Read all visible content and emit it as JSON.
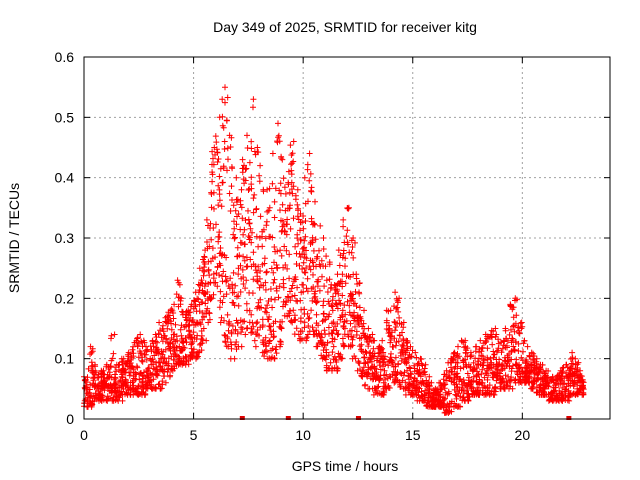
{
  "chart_data": {
    "type": "scatter",
    "title": "Day 349 of 2025, SRMTID for receiver kitg",
    "xlabel": "GPS time / hours",
    "ylabel": "SRMTID / TECUs",
    "xlim": [
      0,
      24
    ],
    "ylim": [
      0,
      0.6
    ],
    "xticks": [
      0,
      5,
      10,
      15,
      20
    ],
    "yticks": [
      0,
      0.1,
      0.2,
      0.3,
      0.4,
      0.5,
      0.6
    ],
    "xtick_labels": [
      "0",
      "5",
      "10",
      "15",
      "20"
    ],
    "ytick_labels": [
      "0",
      "0.1",
      "0.2",
      "0.3",
      "0.4",
      "0.5",
      "0.6"
    ],
    "grid": true,
    "marker": "+",
    "color": "#ff0000",
    "data_gap_markers_x": [
      7.2,
      9.3,
      12.5,
      22.1
    ],
    "series": [
      {
        "name": "SRMTID",
        "x": [
          0.0,
          0.2,
          0.4,
          0.6,
          0.8,
          1.0,
          1.2,
          1.4,
          1.6,
          1.8,
          2.0,
          2.2,
          2.4,
          2.6,
          2.8,
          3.0,
          3.2,
          3.4,
          3.6,
          3.8,
          4.0,
          4.2,
          4.4,
          4.6,
          4.8,
          5.0,
          5.2,
          5.4,
          5.6,
          5.8,
          6.0,
          6.2,
          6.4,
          6.6,
          6.8,
          7.0,
          7.2,
          7.4,
          7.6,
          7.8,
          8.0,
          8.2,
          8.4,
          8.6,
          8.8,
          9.0,
          9.2,
          9.4,
          9.6,
          9.8,
          10.0,
          10.2,
          10.4,
          10.6,
          10.8,
          11.0,
          11.2,
          11.4,
          11.6,
          11.8,
          12.0,
          12.2,
          12.4,
          12.6,
          12.8,
          13.0,
          13.2,
          13.4,
          13.6,
          13.8,
          14.0,
          14.2,
          14.4,
          14.6,
          14.8,
          15.0,
          15.2,
          15.4,
          15.6,
          15.8,
          16.0,
          16.2,
          16.4,
          16.6,
          16.8,
          17.0,
          17.2,
          17.4,
          17.6,
          17.8,
          18.0,
          18.2,
          18.4,
          18.6,
          18.8,
          19.0,
          19.2,
          19.4,
          19.6,
          19.8,
          20.0,
          20.2,
          20.4,
          20.6,
          20.8,
          21.0,
          21.2,
          21.4,
          21.6,
          21.8,
          22.0,
          22.2,
          22.4,
          22.6
        ],
        "low": [
          0.02,
          0.02,
          0.03,
          0.03,
          0.03,
          0.03,
          0.03,
          0.03,
          0.03,
          0.04,
          0.04,
          0.04,
          0.04,
          0.04,
          0.05,
          0.05,
          0.05,
          0.05,
          0.06,
          0.07,
          0.08,
          0.09,
          0.09,
          0.09,
          0.1,
          0.1,
          0.11,
          0.13,
          0.16,
          0.2,
          0.22,
          0.16,
          0.12,
          0.1,
          0.1,
          0.12,
          0.14,
          0.15,
          0.13,
          0.12,
          0.11,
          0.1,
          0.1,
          0.1,
          0.12,
          0.15,
          0.17,
          0.16,
          0.14,
          0.13,
          0.13,
          0.14,
          0.14,
          0.12,
          0.1,
          0.08,
          0.08,
          0.08,
          0.1,
          0.12,
          0.12,
          0.1,
          0.08,
          0.07,
          0.05,
          0.05,
          0.04,
          0.04,
          0.04,
          0.05,
          0.06,
          0.06,
          0.05,
          0.04,
          0.04,
          0.04,
          0.03,
          0.03,
          0.02,
          0.02,
          0.02,
          0.02,
          0.01,
          0.01,
          0.02,
          0.02,
          0.03,
          0.03,
          0.04,
          0.04,
          0.04,
          0.04,
          0.04,
          0.04,
          0.05,
          0.05,
          0.05,
          0.05,
          0.06,
          0.06,
          0.06,
          0.06,
          0.05,
          0.04,
          0.04,
          0.04,
          0.03,
          0.03,
          0.03,
          0.03,
          0.03,
          0.04,
          0.04,
          0.04
        ],
        "high": [
          0.07,
          0.12,
          0.09,
          0.08,
          0.08,
          0.09,
          0.14,
          0.09,
          0.1,
          0.1,
          0.11,
          0.13,
          0.14,
          0.13,
          0.12,
          0.13,
          0.14,
          0.16,
          0.17,
          0.18,
          0.19,
          0.23,
          0.2,
          0.18,
          0.19,
          0.21,
          0.25,
          0.28,
          0.33,
          0.45,
          0.5,
          0.53,
          0.55,
          0.47,
          0.4,
          0.38,
          0.43,
          0.47,
          0.53,
          0.45,
          0.42,
          0.38,
          0.39,
          0.44,
          0.49,
          0.43,
          0.41,
          0.46,
          0.38,
          0.34,
          0.4,
          0.44,
          0.36,
          0.32,
          0.3,
          0.27,
          0.26,
          0.24,
          0.28,
          0.33,
          0.35,
          0.3,
          0.24,
          0.18,
          0.15,
          0.14,
          0.13,
          0.12,
          0.13,
          0.18,
          0.21,
          0.2,
          0.16,
          0.13,
          0.12,
          0.11,
          0.1,
          0.09,
          0.07,
          0.06,
          0.05,
          0.06,
          0.08,
          0.1,
          0.11,
          0.12,
          0.13,
          0.12,
          0.11,
          0.12,
          0.13,
          0.14,
          0.14,
          0.15,
          0.14,
          0.13,
          0.15,
          0.19,
          0.2,
          0.16,
          0.13,
          0.12,
          0.11,
          0.1,
          0.09,
          0.08,
          0.07,
          0.07,
          0.08,
          0.09,
          0.09,
          0.11,
          0.1,
          0.08
        ]
      }
    ]
  }
}
